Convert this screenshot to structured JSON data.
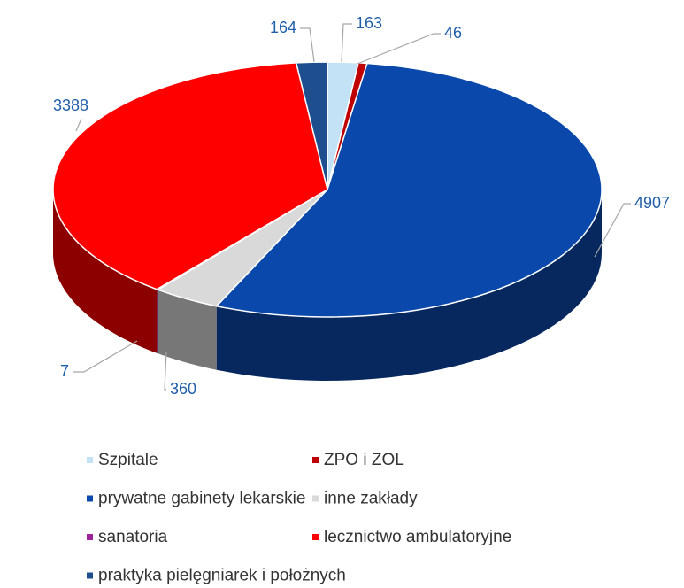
{
  "chart_data": {
    "type": "pie",
    "categories": [
      "Szpitale",
      "ZPO i ZOL",
      "prywatne gabinety lekarskie",
      "inne zakłady",
      "sanatoria",
      "lecznictwo ambulatoryjne",
      "praktyka pielęgniarek i położnych"
    ],
    "values": [
      163,
      46,
      4907,
      360,
      7,
      3388,
      164
    ],
    "colors": [
      "#c3e2f6",
      "#c00000",
      "#0a48ab",
      "#d9d9d9",
      "#a0229c",
      "#ff0000",
      "#1f4e8f"
    ],
    "legend": "bottom"
  }
}
